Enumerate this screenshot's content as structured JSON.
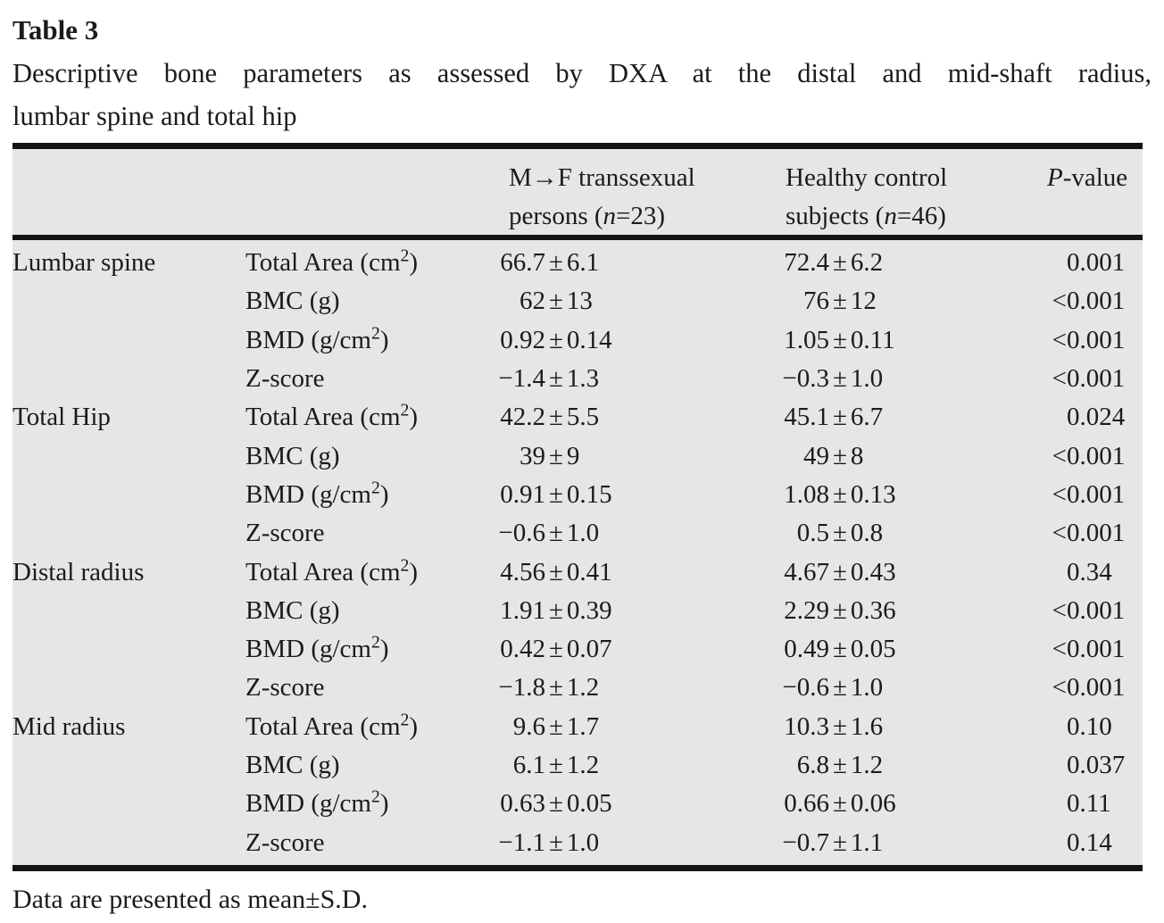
{
  "table_label": "Table 3",
  "caption": {
    "line1": "Descriptive bone parameters as assessed by DXA at the distal and mid-shaft radius,",
    "line2": "lumbar spine and total hip"
  },
  "columns": {
    "group": "",
    "parameter": "",
    "mf": "M→F transsexual persons (*n*=23)",
    "hc": "Healthy control subjects (*n*=46)",
    "p": "*P*-value"
  },
  "rows": [
    {
      "section": "Lumbar spine",
      "parameter": "Total Area (cm^2)",
      "mf": "66.7±6.1",
      "hc": "72.4±6.2",
      "p": "0.001"
    },
    {
      "section": "",
      "parameter": "BMC (g)",
      "mf": "62±13",
      "hc": "76±12",
      "p": "<0.001"
    },
    {
      "section": "",
      "parameter": "BMD (g/cm^2)",
      "mf": "0.92±0.14",
      "hc": "1.05±0.11",
      "p": "<0.001"
    },
    {
      "section": "",
      "parameter": "Z-score",
      "mf": "−1.4±1.3",
      "hc": "−0.3±1.0",
      "p": "<0.001"
    },
    {
      "section": "Total Hip",
      "parameter": "Total Area (cm^2)",
      "mf": "42.2±5.5",
      "hc": "45.1±6.7",
      "p": "0.024"
    },
    {
      "section": "",
      "parameter": "BMC (g)",
      "mf": "39±9",
      "hc": "49±8",
      "p": "<0.001"
    },
    {
      "section": "",
      "parameter": "BMD (g/cm^2)",
      "mf": "0.91±0.15",
      "hc": "1.08±0.13",
      "p": "<0.001"
    },
    {
      "section": "",
      "parameter": "Z-score",
      "mf": "−0.6±1.0",
      "hc": "0.5±0.8",
      "p": "<0.001"
    },
    {
      "section": "Distal radius",
      "parameter": "Total Area (cm^2)",
      "mf": "4.56±0.41",
      "hc": "4.67±0.43",
      "p": "0.34"
    },
    {
      "section": "",
      "parameter": "BMC (g)",
      "mf": "1.91±0.39",
      "hc": "2.29±0.36",
      "p": "<0.001"
    },
    {
      "section": "",
      "parameter": "BMD (g/cm^2)",
      "mf": "0.42±0.07",
      "hc": "0.49±0.05",
      "p": "<0.001"
    },
    {
      "section": "",
      "parameter": "Z-score",
      "mf": "−1.8±1.2",
      "hc": "−0.6±1.0",
      "p": "<0.001"
    },
    {
      "section": "Mid radius",
      "parameter": "Total Area (cm^2)",
      "mf": "9.6±1.7",
      "hc": "10.3±1.6",
      "p": "0.10"
    },
    {
      "section": "",
      "parameter": "BMC (g)",
      "mf": "6.1±1.2",
      "hc": "6.8±1.2",
      "p": "0.037"
    },
    {
      "section": "",
      "parameter": "BMD (g/cm^2)",
      "mf": "0.63±0.05",
      "hc": "0.66±0.06",
      "p": "0.11"
    },
    {
      "section": "",
      "parameter": "Z-score",
      "mf": "−1.1±1.0",
      "hc": "−0.7±1.1",
      "p": "0.14"
    }
  ],
  "footnote": "Data are presented as mean±S.D.",
  "colors": {
    "table_stripe_bg": "#e5e6e6",
    "rule": "#141414",
    "text": "#1b1b1b",
    "page_bg": "#ffffff"
  }
}
